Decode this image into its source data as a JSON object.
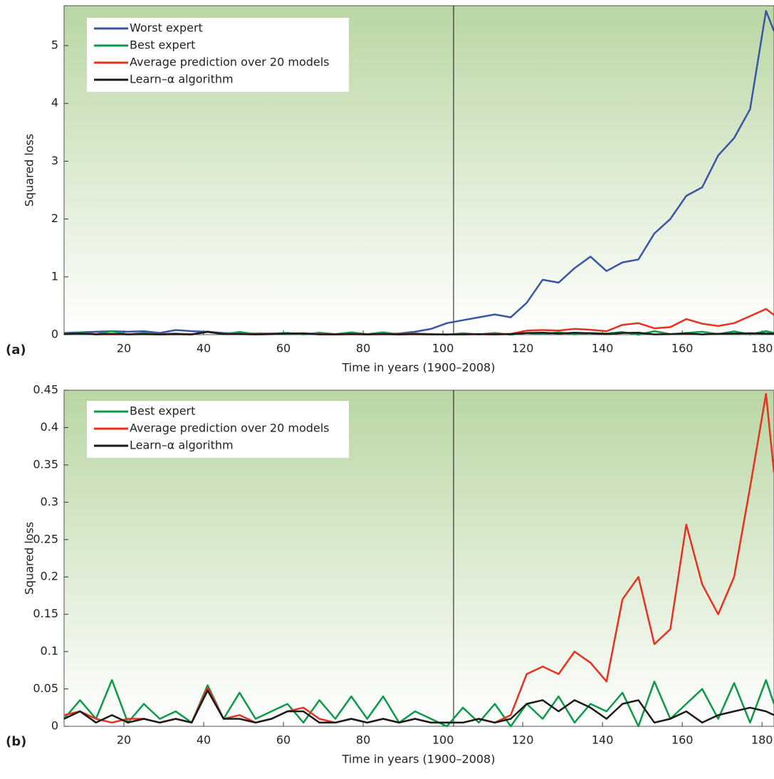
{
  "chart_data": [
    {
      "type": "line",
      "panel_label": "(a)",
      "ylabel": "Squared loss",
      "xlabel": "Time in years (1900–2008)",
      "xlim": [
        5,
        183
      ],
      "xticks": [
        20,
        40,
        60,
        80,
        100,
        120,
        140,
        160,
        180
      ],
      "ylim": [
        0,
        5.69
      ],
      "yticks": [
        0,
        1,
        2,
        3,
        4,
        5
      ],
      "x": [
        5,
        9,
        13,
        17,
        21,
        25,
        29,
        33,
        37,
        41,
        45,
        49,
        53,
        57,
        61,
        65,
        69,
        73,
        77,
        81,
        85,
        89,
        93,
        97,
        101,
        105,
        109,
        113,
        117,
        121,
        125,
        129,
        133,
        137,
        141,
        145,
        149,
        153,
        157,
        161,
        165,
        169,
        173,
        177,
        181,
        183
      ],
      "series": [
        {
          "name": "Worst expert",
          "color": "#3a55a4",
          "values": [
            0.03,
            0.04,
            0.05,
            0.06,
            0.05,
            0.06,
            0.03,
            0.08,
            0.06,
            0.05,
            0.03,
            0.02,
            0.02,
            0.02,
            0.02,
            0.01,
            0.01,
            0.01,
            0.01,
            0.01,
            0.01,
            0.02,
            0.05,
            0.1,
            0.2,
            0.25,
            0.3,
            0.35,
            0.3,
            0.55,
            0.95,
            0.9,
            1.15,
            1.35,
            1.1,
            1.25,
            1.3,
            1.75,
            2.0,
            2.4,
            2.55,
            3.1,
            3.4,
            3.9,
            5.6,
            5.25
          ]
        },
        {
          "name": "Best expert",
          "color": "#0d9a48",
          "values": [
            0.01,
            0.035,
            0.01,
            0.062,
            0.005,
            0.03,
            0.01,
            0.02,
            0.005,
            0.055,
            0.01,
            0.045,
            0.01,
            0.02,
            0.03,
            0.005,
            0.035,
            0.01,
            0.04,
            0.01,
            0.04,
            0.005,
            0.02,
            0.01,
            0.0,
            0.025,
            0.005,
            0.03,
            0.0,
            0.03,
            0.01,
            0.04,
            0.005,
            0.03,
            0.02,
            0.045,
            0.0,
            0.06,
            0.01,
            0.03,
            0.05,
            0.01,
            0.058,
            0.005,
            0.062,
            0.03
          ]
        },
        {
          "name": "Average prediction over 20 models",
          "color": "#e8301f",
          "values": [
            0.015,
            0.02,
            0.01,
            0.005,
            0.01,
            0.01,
            0.005,
            0.01,
            0.005,
            0.052,
            0.01,
            0.015,
            0.005,
            0.01,
            0.02,
            0.025,
            0.01,
            0.005,
            0.01,
            0.005,
            0.01,
            0.005,
            0.01,
            0.005,
            0.005,
            0.005,
            0.01,
            0.005,
            0.015,
            0.07,
            0.08,
            0.07,
            0.1,
            0.085,
            0.06,
            0.17,
            0.2,
            0.11,
            0.13,
            0.27,
            0.19,
            0.15,
            0.2,
            0.32,
            0.445,
            0.34
          ]
        },
        {
          "name": "Learn–α algorithm",
          "color": "#1a1a1a",
          "values": [
            0.01,
            0.02,
            0.005,
            0.015,
            0.005,
            0.01,
            0.005,
            0.01,
            0.005,
            0.048,
            0.01,
            0.01,
            0.005,
            0.01,
            0.02,
            0.02,
            0.005,
            0.005,
            0.01,
            0.005,
            0.01,
            0.005,
            0.01,
            0.005,
            0.005,
            0.005,
            0.01,
            0.005,
            0.01,
            0.03,
            0.035,
            0.02,
            0.035,
            0.025,
            0.01,
            0.03,
            0.035,
            0.005,
            0.01,
            0.02,
            0.005,
            0.015,
            0.02,
            0.025,
            0.02,
            0.015
          ]
        }
      ]
    },
    {
      "type": "line",
      "panel_label": "(b)",
      "ylabel": "Squared loss",
      "xlabel": "Time in years (1900–2008)",
      "xlim": [
        5,
        183
      ],
      "xticks": [
        20,
        40,
        60,
        80,
        100,
        120,
        140,
        160,
        180
      ],
      "ylim": [
        0,
        0.45
      ],
      "yticks": [
        0,
        0.05,
        0.1,
        0.15,
        0.2,
        0.25,
        0.3,
        0.35,
        0.4,
        0.45
      ],
      "x": [
        5,
        9,
        13,
        17,
        21,
        25,
        29,
        33,
        37,
        41,
        45,
        49,
        53,
        57,
        61,
        65,
        69,
        73,
        77,
        81,
        85,
        89,
        93,
        97,
        101,
        105,
        109,
        113,
        117,
        121,
        125,
        129,
        133,
        137,
        141,
        145,
        149,
        153,
        157,
        161,
        165,
        169,
        173,
        177,
        181,
        183
      ],
      "series": [
        {
          "name": "Best expert",
          "color": "#0d9a48",
          "values": [
            0.01,
            0.035,
            0.01,
            0.062,
            0.005,
            0.03,
            0.01,
            0.02,
            0.005,
            0.055,
            0.01,
            0.045,
            0.01,
            0.02,
            0.03,
            0.005,
            0.035,
            0.01,
            0.04,
            0.01,
            0.04,
            0.005,
            0.02,
            0.01,
            0.0,
            0.025,
            0.005,
            0.03,
            0.0,
            0.03,
            0.01,
            0.04,
            0.005,
            0.03,
            0.02,
            0.045,
            0.0,
            0.06,
            0.01,
            0.03,
            0.05,
            0.01,
            0.058,
            0.005,
            0.062,
            0.03
          ]
        },
        {
          "name": "Average prediction over 20 models",
          "color": "#e8301f",
          "values": [
            0.015,
            0.02,
            0.01,
            0.005,
            0.01,
            0.01,
            0.005,
            0.01,
            0.005,
            0.052,
            0.01,
            0.015,
            0.005,
            0.01,
            0.02,
            0.025,
            0.01,
            0.005,
            0.01,
            0.005,
            0.01,
            0.005,
            0.01,
            0.005,
            0.005,
            0.005,
            0.01,
            0.005,
            0.015,
            0.07,
            0.08,
            0.07,
            0.1,
            0.085,
            0.06,
            0.17,
            0.2,
            0.11,
            0.13,
            0.27,
            0.19,
            0.15,
            0.2,
            0.32,
            0.445,
            0.34
          ]
        },
        {
          "name": "Learn–α algorithm",
          "color": "#1a1a1a",
          "values": [
            0.01,
            0.02,
            0.005,
            0.015,
            0.005,
            0.01,
            0.005,
            0.01,
            0.005,
            0.048,
            0.01,
            0.01,
            0.005,
            0.01,
            0.02,
            0.02,
            0.005,
            0.005,
            0.01,
            0.005,
            0.01,
            0.005,
            0.01,
            0.005,
            0.005,
            0.005,
            0.01,
            0.005,
            0.01,
            0.03,
            0.035,
            0.02,
            0.035,
            0.025,
            0.01,
            0.03,
            0.035,
            0.005,
            0.01,
            0.02,
            0.005,
            0.015,
            0.02,
            0.025,
            0.02,
            0.015
          ]
        }
      ]
    }
  ]
}
